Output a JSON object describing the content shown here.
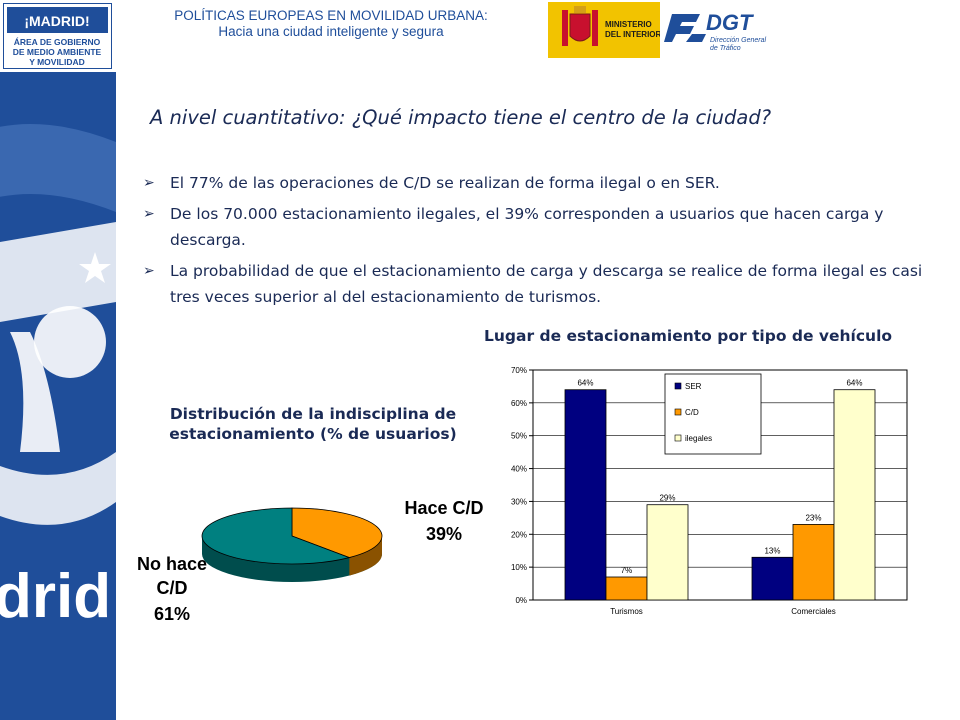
{
  "header": {
    "line1": "POLÍTICAS EUROPEAS EN MOVILIDAD URBANA:",
    "line2": "Hacia una ciudad inteligente y segura"
  },
  "logos": {
    "madrid": "¡MADRID!",
    "madrid_area_line1": "ÁREA DE GOBIERNO",
    "madrid_area_line2": "DE MEDIO AMBIENTE",
    "madrid_area_line3": "Y MOVILIDAD",
    "ministerio_line1": "MINISTERIO",
    "ministerio_line2": "DEL INTERIOR",
    "dgt": "DGT",
    "dgt_sub1": "Dirección General",
    "dgt_sub2": "de Tráfico",
    "sidebar_word": "drid"
  },
  "slide": {
    "title": "A nivel cuantitativo: ¿Qué impacto tiene el centro de la ciudad?",
    "bullets": [
      "El 77% de las operaciones de C/D se realizan de forma ilegal o en SER.",
      "De los 70.000 estacionamiento ilegales, el 39% corresponden a usuarios que hacen carga y descarga.",
      "La probabilidad de que el estacionamiento de carga y descarga se realice de forma ilegal es casi tres veces superior al del estacionamiento de turismos."
    ]
  },
  "colors": {
    "ser": "#000080",
    "cd": "#ff9900",
    "ilegales": "#ffffcc",
    "pie_cd": "#ff9900",
    "pie_no_cd": "#008080",
    "sidebar": "#1f4e9a",
    "text": "#1a2a55"
  },
  "chart_data": [
    {
      "type": "pie",
      "title": "Distribución de la indisciplina de estacionamiento (% de usuarios)",
      "slices": [
        {
          "label_line1": "Hace C/D",
          "label_line2": "",
          "pct": "39%",
          "value": 39
        },
        {
          "label_line1": "No hace",
          "label_line2": "C/D",
          "pct": "61%",
          "value": 61
        }
      ]
    },
    {
      "type": "bar",
      "title": "Lugar de estacionamiento por tipo de vehículo",
      "categories": [
        "Turismos",
        "Comerciales"
      ],
      "series": [
        {
          "name": "SER",
          "values": [
            64,
            13
          ],
          "labels": [
            "64%",
            "13%"
          ]
        },
        {
          "name": "C/D",
          "values": [
            7,
            23
          ],
          "labels": [
            "7%",
            "23%"
          ]
        },
        {
          "name": "ilegales",
          "values": [
            29,
            64
          ],
          "labels": [
            "29%",
            "64%"
          ]
        }
      ],
      "ylim": [
        0,
        70
      ],
      "yticks": [
        "0%",
        "10%",
        "20%",
        "30%",
        "40%",
        "50%",
        "60%",
        "70%"
      ],
      "legend_position": "top-center"
    }
  ]
}
